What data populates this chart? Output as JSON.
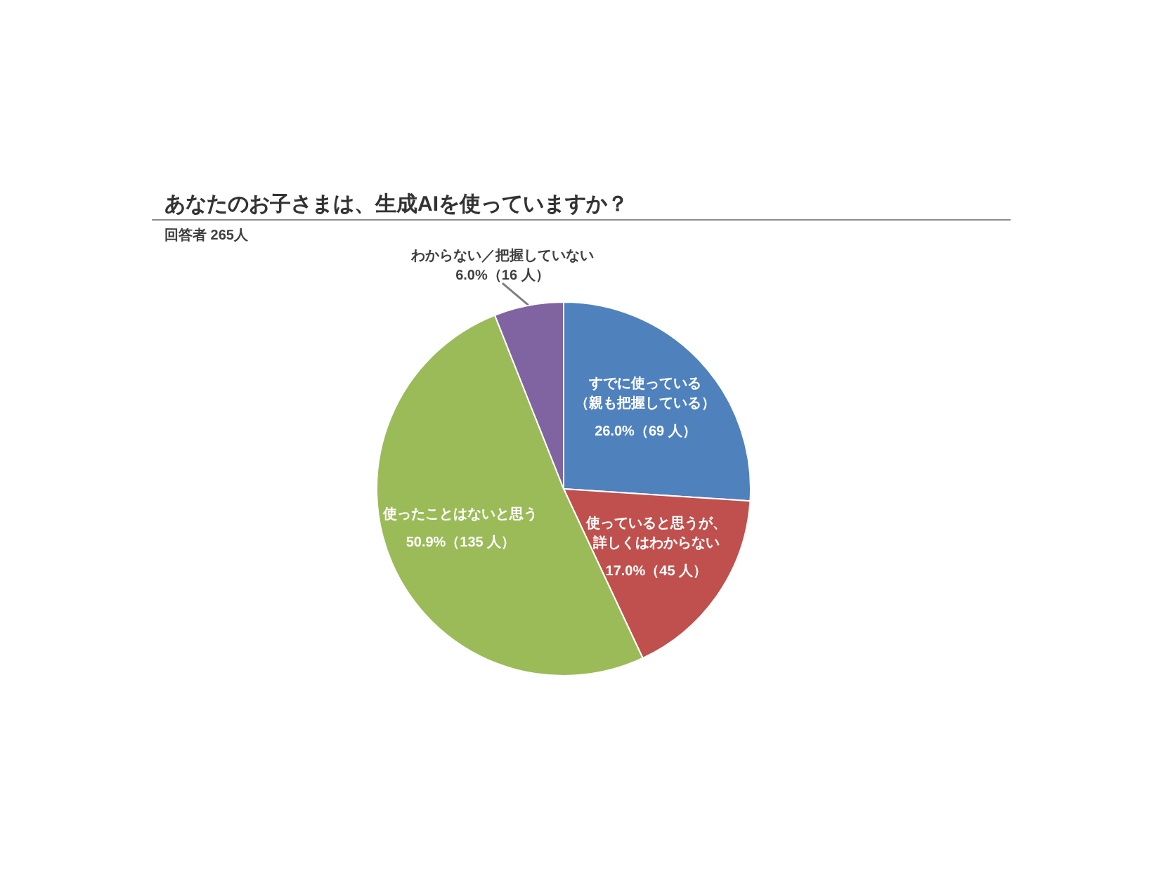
{
  "chart_data": {
    "type": "pie",
    "title": "あなたのお子さまは、生成AIを使っていますか？",
    "subtitle": "回答者 265人",
    "categories": [
      "すでに使っている（親も把握している）",
      "使っていると思うが、詳しくはわからない",
      "使ったことはないと思う",
      "わからない／把握していない"
    ],
    "values": [
      26.0,
      17.0,
      50.9,
      6.0
    ],
    "colors": [
      "#4f81bd",
      "#c0504d",
      "#9bbb59",
      "#8064a2"
    ],
    "value_labels": [
      "26.0%（69 人）",
      "17.0%（45 人）",
      "50.9%（135 人）",
      "6.0%（16 人）"
    ]
  }
}
